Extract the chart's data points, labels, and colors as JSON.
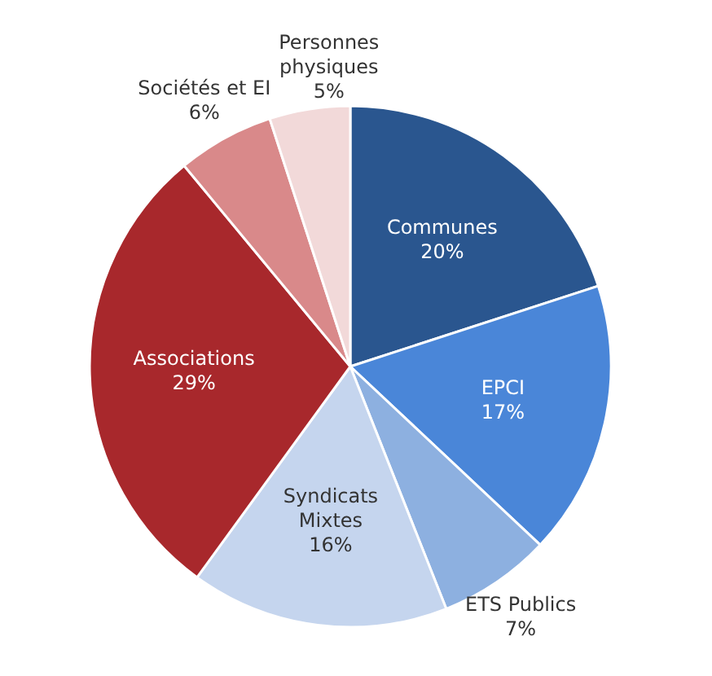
{
  "chart_data": {
    "type": "pie",
    "categories": [
      "Communes",
      "EPCI",
      "ETS Publics",
      "Syndicats Mixtes",
      "Associations",
      "Sociétés et EI",
      "Personnes physiques"
    ],
    "values": [
      20,
      17,
      7,
      16,
      29,
      6,
      5
    ],
    "colors": [
      "#2a568f",
      "#4a86d8",
      "#8db0e0",
      "#c5d5ee",
      "#a8282c",
      "#d9898a",
      "#f2d9d9"
    ],
    "value_labels": [
      "20%",
      "17%",
      "7%",
      "16%",
      "29%",
      "6%",
      "5%"
    ]
  }
}
